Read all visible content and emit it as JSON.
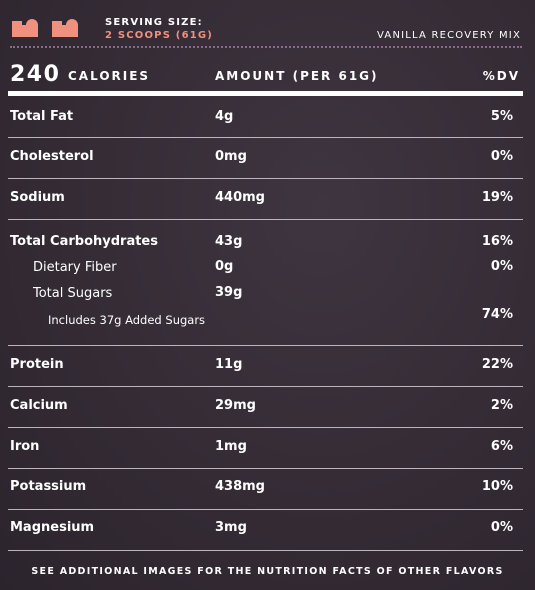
{
  "header": {
    "serving_label": "SERVING SIZE:",
    "serving_value": "2 SCOOPS (61G)",
    "flavor": "VANILLA RECOVERY MIX",
    "scoop_icon_color": "#f0907e"
  },
  "calories": {
    "value": "240",
    "label": "CALORIES",
    "amount_header": "AMOUNT (PER 61G)",
    "dv_header": "%DV"
  },
  "nutrients": [
    {
      "name": "Total Fat",
      "amount": "4g",
      "dv": "5%"
    },
    {
      "name": "Cholesterol",
      "amount": "0mg",
      "dv": "0%"
    },
    {
      "name": "Sodium",
      "amount": "440mg",
      "dv": "19%"
    },
    {
      "name": "Total Carbohydrates",
      "amount": "43g",
      "dv": "16%"
    },
    {
      "name": "Dietary Fiber",
      "amount": "0g",
      "dv": "0%"
    },
    {
      "name": "Total Sugars",
      "amount": "39g",
      "dv": ""
    },
    {
      "name": "Includes 37g Added Sugars",
      "amount": "",
      "dv": "74%"
    },
    {
      "name": "Protein",
      "amount": "11g",
      "dv": "22%"
    },
    {
      "name": "Calcium",
      "amount": "29mg",
      "dv": "2%"
    },
    {
      "name": "Iron",
      "amount": "1mg",
      "dv": "6%"
    },
    {
      "name": "Potassium",
      "amount": "438mg",
      "dv": "10%"
    },
    {
      "name": "Magnesium",
      "amount": "3mg",
      "dv": "0%"
    }
  ],
  "footer": "SEE ADDITIONAL IMAGES FOR THE NUTRITION FACTS OF OTHER FLAVORS"
}
